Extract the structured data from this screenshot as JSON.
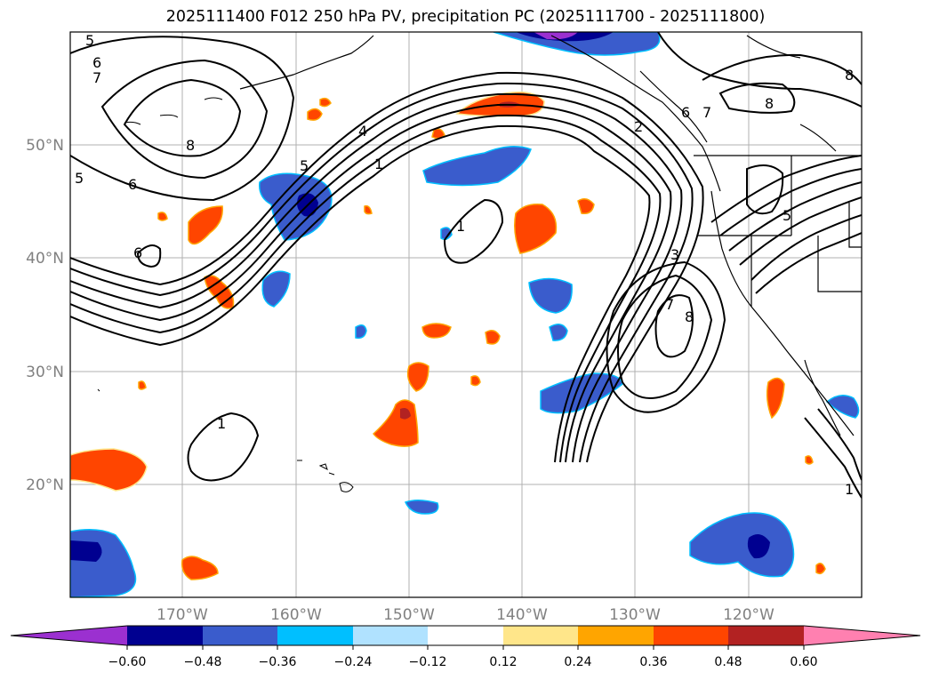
{
  "title": "2025111400 F012 250 hPa PV, precipitation PC (2025111700 - 2025111800)",
  "map": {
    "lat_labels": [
      "50°N",
      "40°N",
      "30°N",
      "20°N"
    ],
    "lon_labels": [
      "170°W",
      "160°W",
      "150°W",
      "140°W",
      "130°W",
      "120°W"
    ],
    "contour_labels": [
      "5",
      "6",
      "7",
      "8",
      "5",
      "6",
      "6",
      "4",
      "5",
      "1",
      "1",
      "2",
      "6",
      "7",
      "8",
      "3",
      "7",
      "8",
      "5",
      "1",
      "1",
      "8"
    ]
  },
  "colorbar": {
    "ticks": [
      "−0.60",
      "−0.48",
      "−0.36",
      "−0.24",
      "−0.12",
      "0.12",
      "0.24",
      "0.36",
      "0.48",
      "0.60"
    ],
    "colors": {
      "under": "#9b30d0",
      "c1": "#000090",
      "c2": "#3a5ccc",
      "c3": "#00bfff",
      "c4": "#b0e2ff",
      "c5": "#ffffff",
      "c6": "#ffe68a",
      "c7": "#ffa500",
      "c8": "#ff4500",
      "c9": "#b22222",
      "over": "#ff80b0"
    }
  }
}
